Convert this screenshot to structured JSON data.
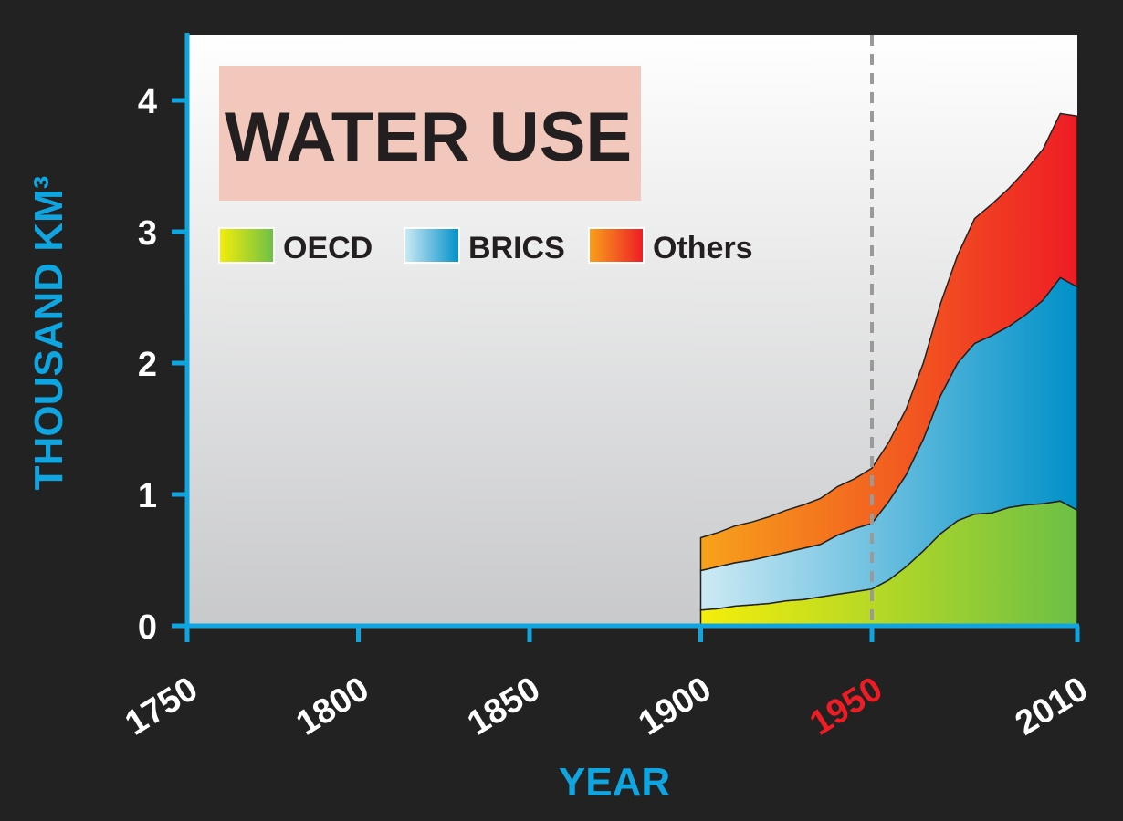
{
  "colors": {
    "background": "#222222",
    "axis": "#0ea5e0",
    "highlight_tick": "#ee1c25",
    "title_box": "#f2c8bc",
    "oecd": [
      "#f5ee0a",
      "#6cbf46"
    ],
    "brics": [
      "#cdeaf4",
      "#0090c8"
    ],
    "others": [
      "#f7a21b",
      "#ee1c25"
    ]
  },
  "chart_data": {
    "type": "area",
    "stacked": true,
    "title": "WATER USE",
    "xlabel": "YEAR",
    "ylabel": "THOUSAND KM³",
    "xlim": [
      1750,
      2010
    ],
    "ylim": [
      0,
      4.5
    ],
    "x_ticks": [
      1750,
      1800,
      1850,
      1900,
      1950,
      2010
    ],
    "x_tick_labels": [
      "1750",
      "1800",
      "1850",
      "1900",
      "1950",
      "2010"
    ],
    "highlighted_x_tick": "1950",
    "y_ticks": [
      0,
      1,
      2,
      3,
      4
    ],
    "y_tick_labels": [
      "0",
      "1",
      "2",
      "3",
      "4"
    ],
    "reference_line_x": 1950,
    "legend_position": "top-left",
    "x": [
      1900,
      1905,
      1910,
      1915,
      1920,
      1925,
      1930,
      1935,
      1940,
      1945,
      1950,
      1955,
      1960,
      1965,
      1970,
      1975,
      1980,
      1985,
      1990,
      1995,
      2000,
      2005,
      2010
    ],
    "series": [
      {
        "name": "OECD",
        "values": [
          0.12,
          0.13,
          0.15,
          0.16,
          0.17,
          0.19,
          0.2,
          0.22,
          0.24,
          0.26,
          0.28,
          0.35,
          0.45,
          0.57,
          0.7,
          0.8,
          0.85,
          0.86,
          0.9,
          0.92,
          0.93,
          0.95,
          0.88
        ]
      },
      {
        "name": "BRICS",
        "values": [
          0.3,
          0.32,
          0.33,
          0.34,
          0.36,
          0.37,
          0.39,
          0.4,
          0.45,
          0.48,
          0.5,
          0.6,
          0.7,
          0.85,
          1.05,
          1.2,
          1.3,
          1.35,
          1.38,
          1.45,
          1.55,
          1.7,
          1.7
        ]
      },
      {
        "name": "Others",
        "values": [
          0.25,
          0.26,
          0.28,
          0.29,
          0.3,
          0.32,
          0.33,
          0.35,
          0.37,
          0.38,
          0.42,
          0.45,
          0.5,
          0.58,
          0.7,
          0.82,
          0.95,
          1.0,
          1.05,
          1.1,
          1.15,
          1.25,
          1.3
        ]
      }
    ]
  }
}
